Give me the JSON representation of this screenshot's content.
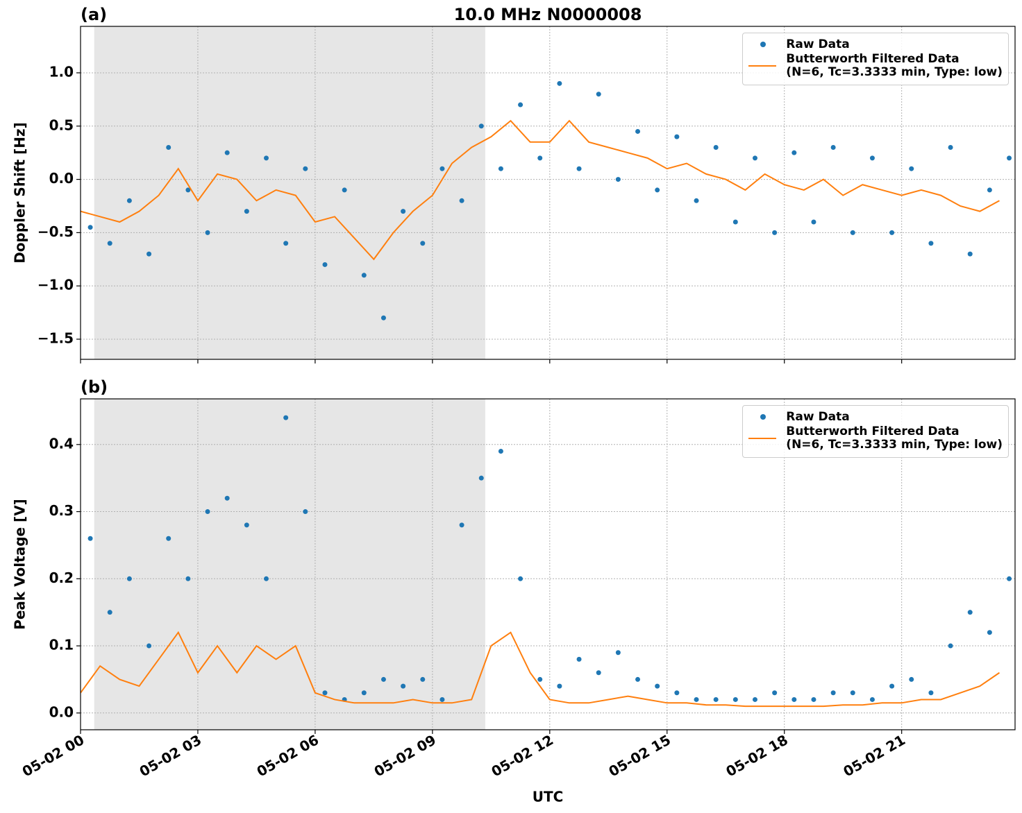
{
  "chart_data": [
    {
      "type": "line",
      "panel_label": "(a)",
      "title": "10.0 MHz N0000008",
      "ylabel": "Doppler Shift [Hz]",
      "xlim": [
        0,
        23.9
      ],
      "ylim": [
        -1.689,
        1.436
      ],
      "yticks": [
        {
          "value": -1.5,
          "label": "−1.5"
        },
        {
          "value": -1.0,
          "label": "−1.0"
        },
        {
          "value": -0.5,
          "label": "−0.5"
        },
        {
          "value": 0,
          "label": "0.0"
        },
        0.5,
        {
          "value": 1.0,
          "label": "1.0"
        }
      ],
      "grid": true,
      "legend": "upper right",
      "shaded_span": [
        0.35,
        10.35
      ],
      "series": [
        {
          "name": "Raw Data",
          "style": "points",
          "color": "#1f77b4",
          "x": [
            0.25,
            0.75,
            1.25,
            1.75,
            2.25,
            2.75,
            3.25,
            3.75,
            4.25,
            4.75,
            5.25,
            5.75,
            6.25,
            6.75,
            7.25,
            7.75,
            8.25,
            8.75,
            9.25,
            9.75,
            10.25,
            10.75,
            11.25,
            11.75,
            12.25,
            12.75,
            13.25,
            13.75,
            14.25,
            14.75,
            15.25,
            15.75,
            16.25,
            16.75,
            17.25,
            17.75,
            18.25,
            18.75,
            19.25,
            19.75,
            20.25,
            20.75,
            21.25,
            21.75,
            22.25,
            22.75,
            23.25,
            23.75
          ],
          "values": [
            -0.45,
            -0.6,
            -0.2,
            -0.7,
            0.3,
            -0.1,
            -0.5,
            0.25,
            -0.3,
            0.2,
            -0.6,
            0.1,
            -0.8,
            -0.1,
            -0.9,
            -1.3,
            -0.3,
            -0.6,
            0.1,
            -0.2,
            0.5,
            0.1,
            0.7,
            0.2,
            0.9,
            0.1,
            0.8,
            0.0,
            0.45,
            -0.1,
            0.4,
            -0.2,
            0.3,
            -0.4,
            0.2,
            -0.5,
            0.25,
            -0.4,
            0.3,
            -0.5,
            0.2,
            -0.5,
            0.1,
            -0.6,
            0.3,
            -0.7,
            -0.1,
            0.2
          ]
        },
        {
          "name": "Butterworth Filtered Data\n(N=6, Tc=3.3333 min, Type: low)",
          "style": "line",
          "color": "#ff7f0e",
          "x": [
            0,
            0.5,
            1,
            1.5,
            2,
            2.5,
            3,
            3.5,
            4,
            4.5,
            5,
            5.5,
            6,
            6.5,
            7,
            7.5,
            8,
            8.5,
            9,
            9.5,
            10,
            10.5,
            11,
            11.5,
            12,
            12.5,
            13,
            13.5,
            14,
            14.5,
            15,
            15.5,
            16,
            16.5,
            17,
            17.5,
            18,
            18.5,
            19,
            19.5,
            20,
            20.5,
            21,
            21.5,
            22,
            22.5,
            23,
            23.5
          ],
          "values": [
            -0.3,
            -0.35,
            -0.4,
            -0.3,
            -0.15,
            0.1,
            -0.2,
            0.05,
            0.0,
            -0.2,
            -0.1,
            -0.15,
            -0.4,
            -0.35,
            -0.55,
            -0.75,
            -0.5,
            -0.3,
            -0.15,
            0.15,
            0.3,
            0.4,
            0.55,
            0.35,
            0.35,
            0.55,
            0.35,
            0.3,
            0.25,
            0.2,
            0.1,
            0.15,
            0.05,
            0.0,
            -0.1,
            0.05,
            -0.05,
            -0.1,
            0.0,
            -0.15,
            -0.05,
            -0.1,
            -0.15,
            -0.1,
            -0.15,
            -0.25,
            -0.3,
            -0.2
          ]
        }
      ]
    },
    {
      "type": "line",
      "panel_label": "(b)",
      "ylabel": "Peak Voltage [V]",
      "xlabel": "UTC",
      "xlim": [
        0,
        23.9
      ],
      "ylim": [
        -0.025,
        0.468
      ],
      "xticks": [
        {
          "value": 0,
          "label": "05-02 00"
        },
        {
          "value": 3,
          "label": "05-02 03"
        },
        {
          "value": 6,
          "label": "05-02 06"
        },
        {
          "value": 9,
          "label": "05-02 09"
        },
        {
          "value": 12,
          "label": "05-02 12"
        },
        {
          "value": 15,
          "label": "05-02 15"
        },
        {
          "value": 18,
          "label": "05-02 18"
        },
        {
          "value": 21,
          "label": "05-02 21"
        }
      ],
      "yticks": [
        {
          "value": 0,
          "label": "0.0"
        },
        0.1,
        0.2,
        0.3,
        0.4
      ],
      "grid": true,
      "legend": "upper right",
      "shaded_span": [
        0.35,
        10.35
      ],
      "series": [
        {
          "name": "Raw Data",
          "style": "points",
          "color": "#1f77b4",
          "x": [
            0.25,
            0.75,
            1.25,
            1.75,
            2.25,
            2.75,
            3.25,
            3.75,
            4.25,
            4.75,
            5.25,
            5.75,
            6.25,
            6.75,
            7.25,
            7.75,
            8.25,
            8.75,
            9.25,
            9.75,
            10.25,
            10.75,
            11.25,
            11.75,
            12.25,
            12.75,
            13.25,
            13.75,
            14.25,
            14.75,
            15.25,
            15.75,
            16.25,
            16.75,
            17.25,
            17.75,
            18.25,
            18.75,
            19.25,
            19.75,
            20.25,
            20.75,
            21.25,
            21.75,
            22.25,
            22.75,
            23.25,
            23.75
          ],
          "values": [
            0.26,
            0.15,
            0.2,
            0.1,
            0.26,
            0.2,
            0.3,
            0.32,
            0.28,
            0.2,
            0.44,
            0.3,
            0.03,
            0.02,
            0.03,
            0.05,
            0.04,
            0.05,
            0.02,
            0.28,
            0.35,
            0.39,
            0.2,
            0.05,
            0.04,
            0.08,
            0.06,
            0.09,
            0.05,
            0.04,
            0.03,
            0.02,
            0.02,
            0.02,
            0.02,
            0.03,
            0.02,
            0.02,
            0.03,
            0.03,
            0.02,
            0.04,
            0.05,
            0.03,
            0.1,
            0.15,
            0.12,
            0.2
          ]
        },
        {
          "name": "Butterworth Filtered Data\n(N=6, Tc=3.3333 min, Type: low)",
          "style": "line",
          "color": "#ff7f0e",
          "x": [
            0,
            0.5,
            1,
            1.5,
            2,
            2.5,
            3,
            3.5,
            4,
            4.5,
            5,
            5.5,
            6,
            6.5,
            7,
            7.5,
            8,
            8.5,
            9,
            9.5,
            10,
            10.5,
            11,
            11.5,
            12,
            12.5,
            13,
            13.5,
            14,
            14.5,
            15,
            15.5,
            16,
            16.5,
            17,
            17.5,
            18,
            18.5,
            19,
            19.5,
            20,
            20.5,
            21,
            21.5,
            22,
            22.5,
            23,
            23.5
          ],
          "values": [
            0.03,
            0.07,
            0.05,
            0.04,
            0.08,
            0.12,
            0.06,
            0.1,
            0.06,
            0.1,
            0.08,
            0.1,
            0.03,
            0.02,
            0.015,
            0.015,
            0.015,
            0.02,
            0.015,
            0.015,
            0.02,
            0.1,
            0.12,
            0.06,
            0.02,
            0.015,
            0.015,
            0.02,
            0.025,
            0.02,
            0.015,
            0.015,
            0.012,
            0.012,
            0.01,
            0.01,
            0.01,
            0.01,
            0.01,
            0.012,
            0.012,
            0.015,
            0.015,
            0.02,
            0.02,
            0.03,
            0.04,
            0.06
          ]
        }
      ]
    }
  ]
}
